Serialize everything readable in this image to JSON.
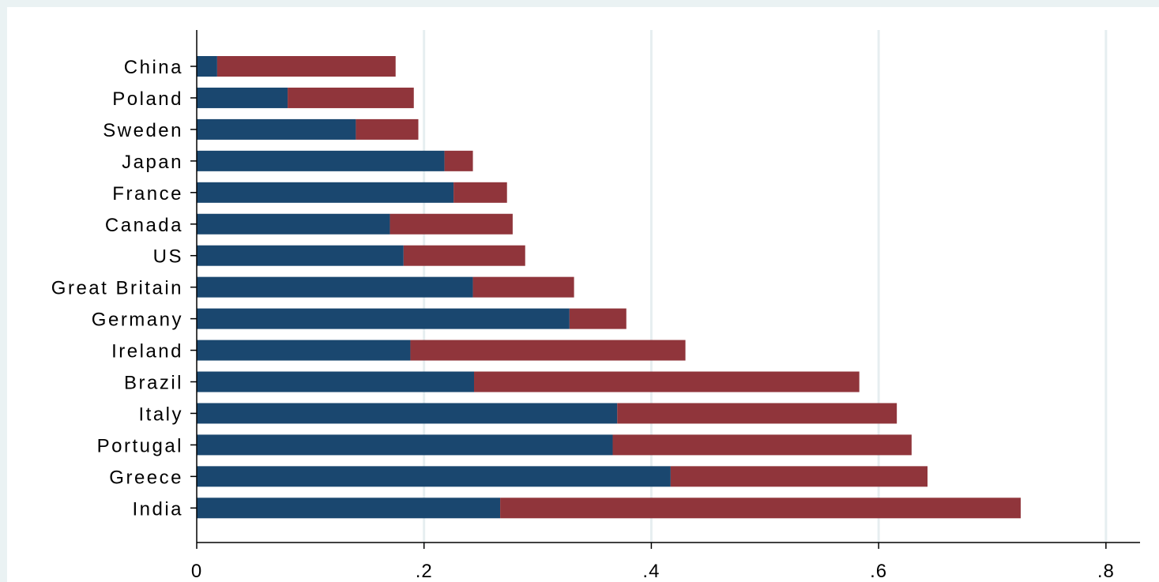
{
  "chart_data": {
    "type": "bar",
    "orientation": "horizontal",
    "stacked": true,
    "categories": [
      "China",
      "Poland",
      "Sweden",
      "Japan",
      "France",
      "Canada",
      "US",
      "Great Britain",
      "Germany",
      "Ireland",
      "Brazil",
      "Italy",
      "Portugal",
      "Greece",
      "India"
    ],
    "series": [
      {
        "color": "#1a476f",
        "values": [
          0.018,
          0.08,
          0.14,
          0.218,
          0.226,
          0.17,
          0.182,
          0.243,
          0.328,
          0.188,
          0.244,
          0.37,
          0.366,
          0.417,
          0.267
        ]
      },
      {
        "color": "#90353b",
        "values": [
          0.157,
          0.111,
          0.055,
          0.025,
          0.047,
          0.108,
          0.107,
          0.089,
          0.05,
          0.242,
          0.339,
          0.246,
          0.263,
          0.226,
          0.458
        ]
      }
    ],
    "xlim": [
      0,
      0.83
    ],
    "xticks": [
      0,
      0.2,
      0.4,
      0.6,
      0.8
    ],
    "xtick_labels": [
      "0",
      ".2",
      ".4",
      ".6",
      ".8"
    ],
    "title": "",
    "xlabel": "",
    "ylabel": "",
    "grid": true,
    "legend": "none"
  }
}
